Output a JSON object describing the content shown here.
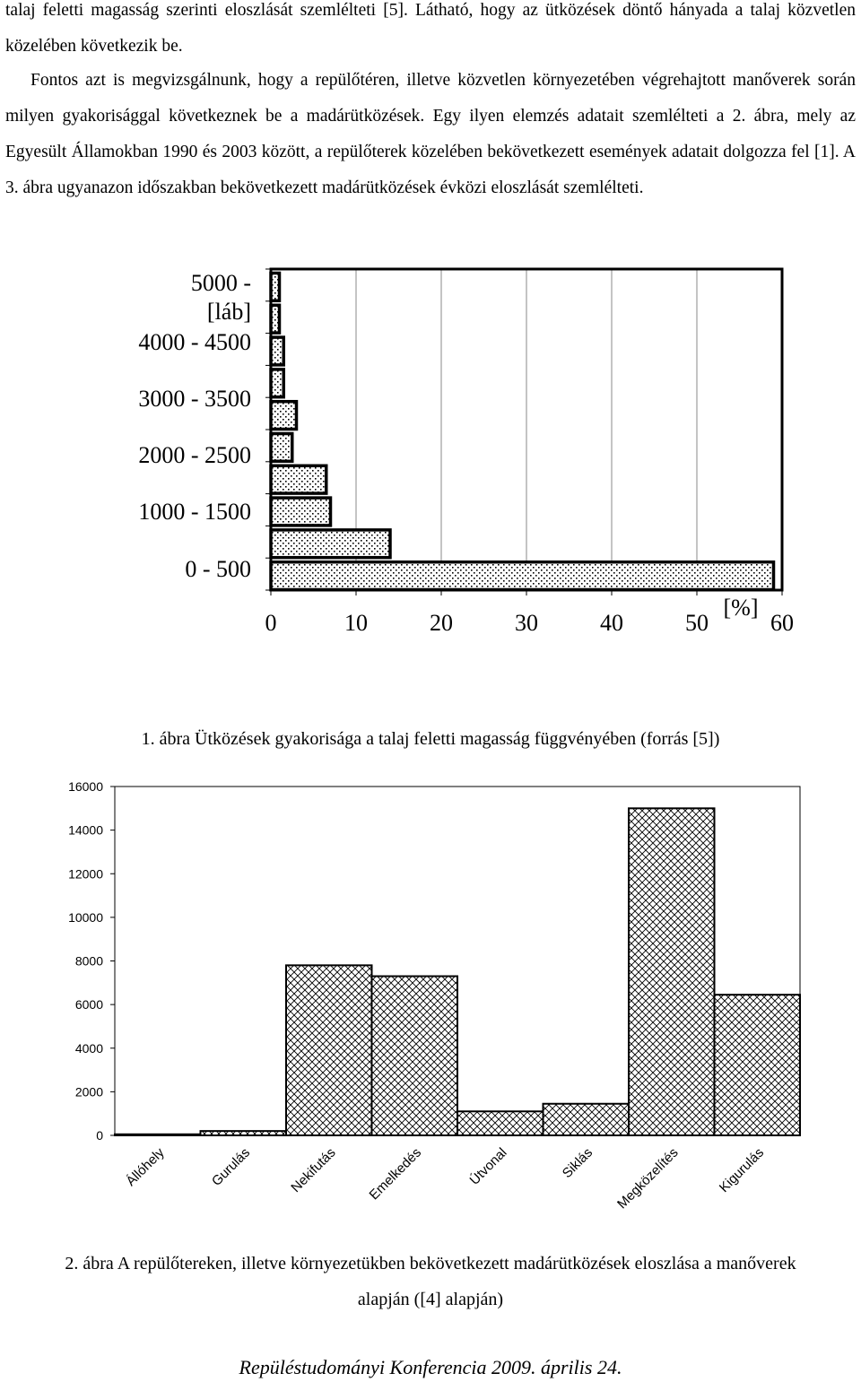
{
  "text": {
    "p1": "talaj feletti magasság szerinti eloszlását szemlélteti [5]. Látható, hogy az ütközések döntő hányada a talaj közvetlen közelében következik be.",
    "p2": "Fontos azt is megvizsgálnunk, hogy a repülőtéren, illetve közvetlen környezetében végrehajtott manőverek során milyen gyakorisággal következnek be a madárütközések. Egy ilyen elemzés adatait szemlélteti a 2. ábra, mely az Egyesült Államokban 1990 és 2003 között, a repülőterek közelében bekövetkezett események adatait dolgozza fel [1]. A 3. ábra ugyanazon időszakban bekövetkezett madárütközések évközi eloszlását szemlélteti."
  },
  "captions": {
    "fig1": "1. ábra Ütközések gyakorisága a talaj feletti magasság függvényében (forrás [5])",
    "fig2_line1": "2. ábra A repülőtereken, illetve környezetükben bekövetkezett madárütközések eloszlása a manőverek",
    "fig2_line2": "alapján ([4] alapján)"
  },
  "footer": "Repüléstudományi Konferencia 2009. április 24.",
  "chart_data": [
    {
      "type": "bar",
      "orientation": "horizontal",
      "y_labels": [
        "5000 -",
        "[láb]",
        "4000 - 4500",
        "3000 - 3500",
        "2000 - 2500",
        "1000 - 1500",
        "0 - 500"
      ],
      "values": [
        1,
        1,
        1.5,
        1.5,
        3,
        2.5,
        6.5,
        7,
        14,
        59
      ],
      "x_ticks": [
        "0",
        "10",
        "20",
        "30",
        "40",
        "50",
        "60"
      ],
      "x_unit": "[%]",
      "xlim": [
        0,
        60
      ],
      "grid": "vertical",
      "pattern": "dotted"
    },
    {
      "type": "bar",
      "categories": [
        "Állóhely",
        "Gurulás",
        "Nekifutás",
        "Emelkedés",
        "Útvonal",
        "Siklás",
        "Megközelítés",
        "Kigurulás"
      ],
      "values": [
        50,
        200,
        7800,
        7300,
        1100,
        1450,
        15000,
        6450
      ],
      "y_ticks": [
        "0",
        "2000",
        "4000",
        "6000",
        "8000",
        "10000",
        "12000",
        "14000",
        "16000"
      ],
      "ylim": [
        0,
        16000
      ],
      "grid": "off",
      "pattern": "crosshatch"
    }
  ]
}
